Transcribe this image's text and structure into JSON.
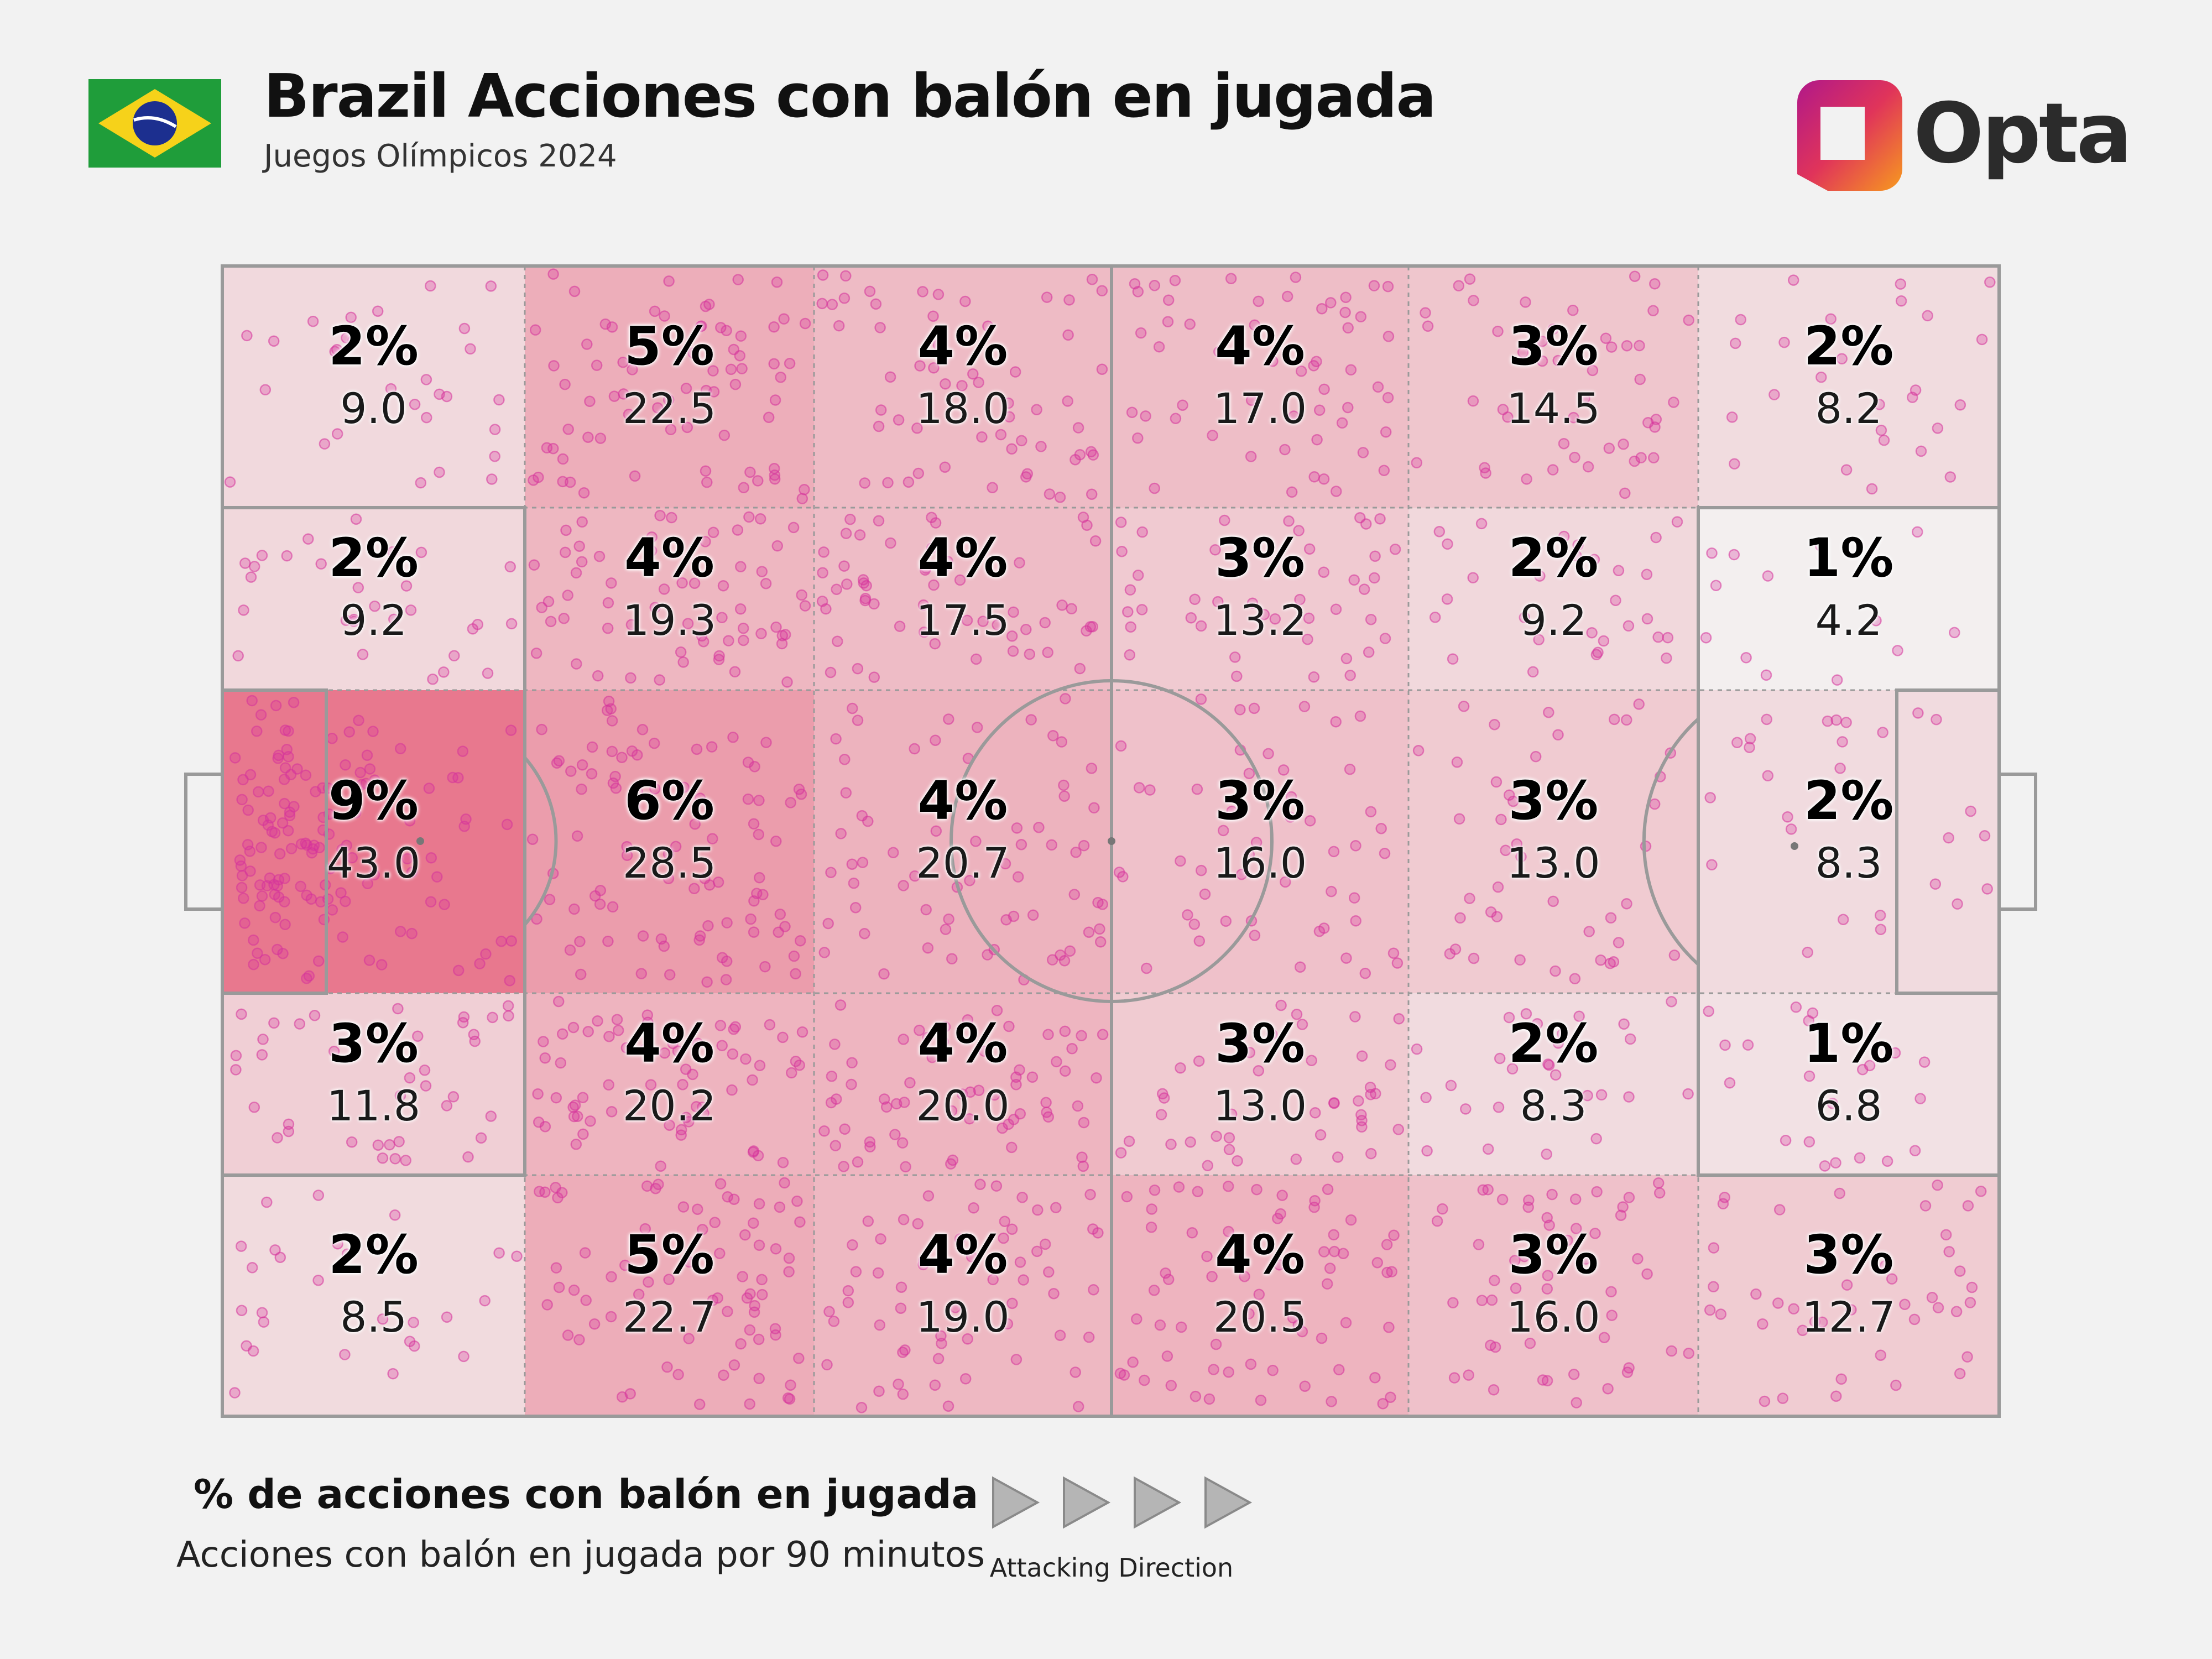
{
  "header": {
    "title": "Brazil Acciones con balón en jugada",
    "subtitle": "Juegos Olímpicos 2024",
    "brand": "Opta",
    "flag_icon": "brazil-flag-icon"
  },
  "colors": {
    "background": "#f2f2f2",
    "dot": "#d6339a",
    "heat_low": "#f3efef",
    "heat_high": "#e8788e",
    "line": "#9a9a9a"
  },
  "chart_data": {
    "type": "heatmap",
    "title": "% de acciones con balón en jugada",
    "subtitle": "Acciones con balón en jugada por 90 minutos",
    "direction_label": "Attacking Direction",
    "columns": 6,
    "rows": 5,
    "cells": [
      [
        {
          "pct": "2%",
          "val": "9.0"
        },
        {
          "pct": "5%",
          "val": "22.5"
        },
        {
          "pct": "4%",
          "val": "18.0"
        },
        {
          "pct": "4%",
          "val": "17.0"
        },
        {
          "pct": "3%",
          "val": "14.5"
        },
        {
          "pct": "2%",
          "val": "8.2"
        }
      ],
      [
        {
          "pct": "2%",
          "val": "9.2"
        },
        {
          "pct": "4%",
          "val": "19.3"
        },
        {
          "pct": "4%",
          "val": "17.5"
        },
        {
          "pct": "3%",
          "val": "13.2"
        },
        {
          "pct": "2%",
          "val": "9.2"
        },
        {
          "pct": "1%",
          "val": "4.2"
        }
      ],
      [
        {
          "pct": "9%",
          "val": "43.0"
        },
        {
          "pct": "6%",
          "val": "28.5"
        },
        {
          "pct": "4%",
          "val": "20.7"
        },
        {
          "pct": "3%",
          "val": "16.0"
        },
        {
          "pct": "3%",
          "val": "13.0"
        },
        {
          "pct": "2%",
          "val": "8.3"
        }
      ],
      [
        {
          "pct": "3%",
          "val": "11.8"
        },
        {
          "pct": "4%",
          "val": "20.2"
        },
        {
          "pct": "4%",
          "val": "20.0"
        },
        {
          "pct": "3%",
          "val": "13.0"
        },
        {
          "pct": "2%",
          "val": "8.3"
        },
        {
          "pct": "1%",
          "val": "6.8"
        }
      ],
      [
        {
          "pct": "2%",
          "val": "8.5"
        },
        {
          "pct": "5%",
          "val": "22.7"
        },
        {
          "pct": "4%",
          "val": "19.0"
        },
        {
          "pct": "4%",
          "val": "20.5"
        },
        {
          "pct": "3%",
          "val": "16.0"
        },
        {
          "pct": "3%",
          "val": "12.7"
        }
      ]
    ],
    "value_min": 4.2,
    "value_max": 43.0
  }
}
